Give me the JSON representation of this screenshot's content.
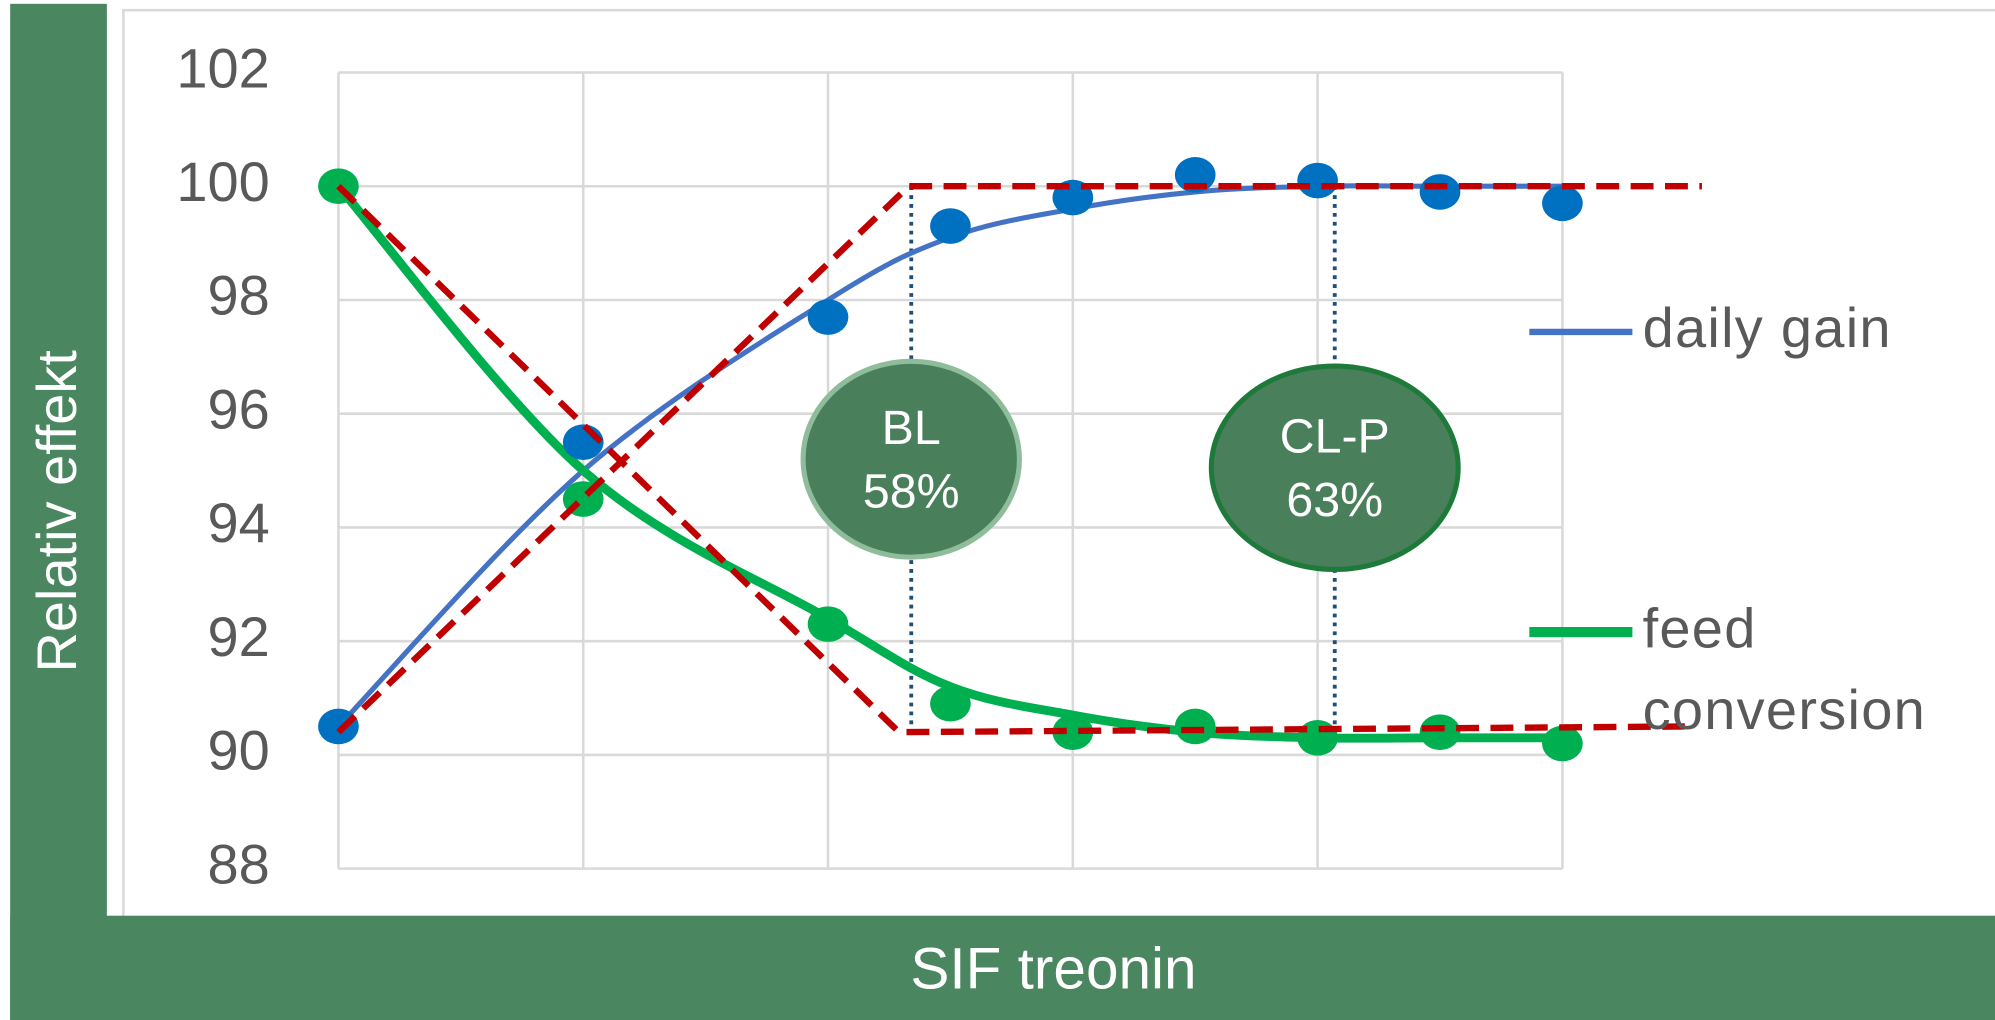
{
  "chart_data": {
    "type": "line",
    "xlabel": "SIF treonin",
    "ylabel": "Relativ effekt",
    "xlim": [
      0,
      5
    ],
    "xticks": [
      0,
      1,
      2,
      3,
      4,
      5
    ],
    "ylim": [
      88,
      102
    ],
    "yticks": [
      88,
      90,
      92,
      94,
      96,
      98,
      100,
      102
    ],
    "grid": true,
    "x": [
      0,
      1,
      2,
      2.5,
      3,
      3.5,
      4,
      4.5,
      5
    ],
    "series": [
      {
        "name": "daily gain",
        "color": "#4472c4",
        "values": [
          90.5,
          95,
          98,
          99.1,
          99.6,
          99.9,
          100,
          100,
          100
        ],
        "points": [
          90.5,
          95.5,
          97.7,
          99.3,
          99.8,
          100.2,
          100.1,
          99.9,
          99.7
        ],
        "point_color": "#0070c0",
        "broken_line": {
          "x": [
            0,
            2.33,
            5.57
          ],
          "y": [
            90.4,
            100,
            100
          ]
        }
      },
      {
        "name": "feed conversion",
        "color": "#00b050",
        "values": [
          100,
          95,
          92.4,
          91.2,
          90.7,
          90.4,
          90.3,
          90.3,
          90.3
        ],
        "points": [
          100,
          94.5,
          92.3,
          90.9,
          90.4,
          90.5,
          90.3,
          90.4,
          90.2
        ],
        "point_color": "#00b050",
        "broken_line": {
          "x": [
            0,
            2.29,
            5.5
          ],
          "y": [
            100,
            90.4,
            90.5
          ]
        }
      }
    ],
    "broken_line_color": "#c00000",
    "annotations": [
      {
        "lines": [
          "BL",
          "58%"
        ],
        "x": 2.34,
        "y": 95.2
      },
      {
        "lines": [
          "CL-P",
          "63%"
        ],
        "x": 4.07,
        "y": 95.05
      }
    ]
  }
}
